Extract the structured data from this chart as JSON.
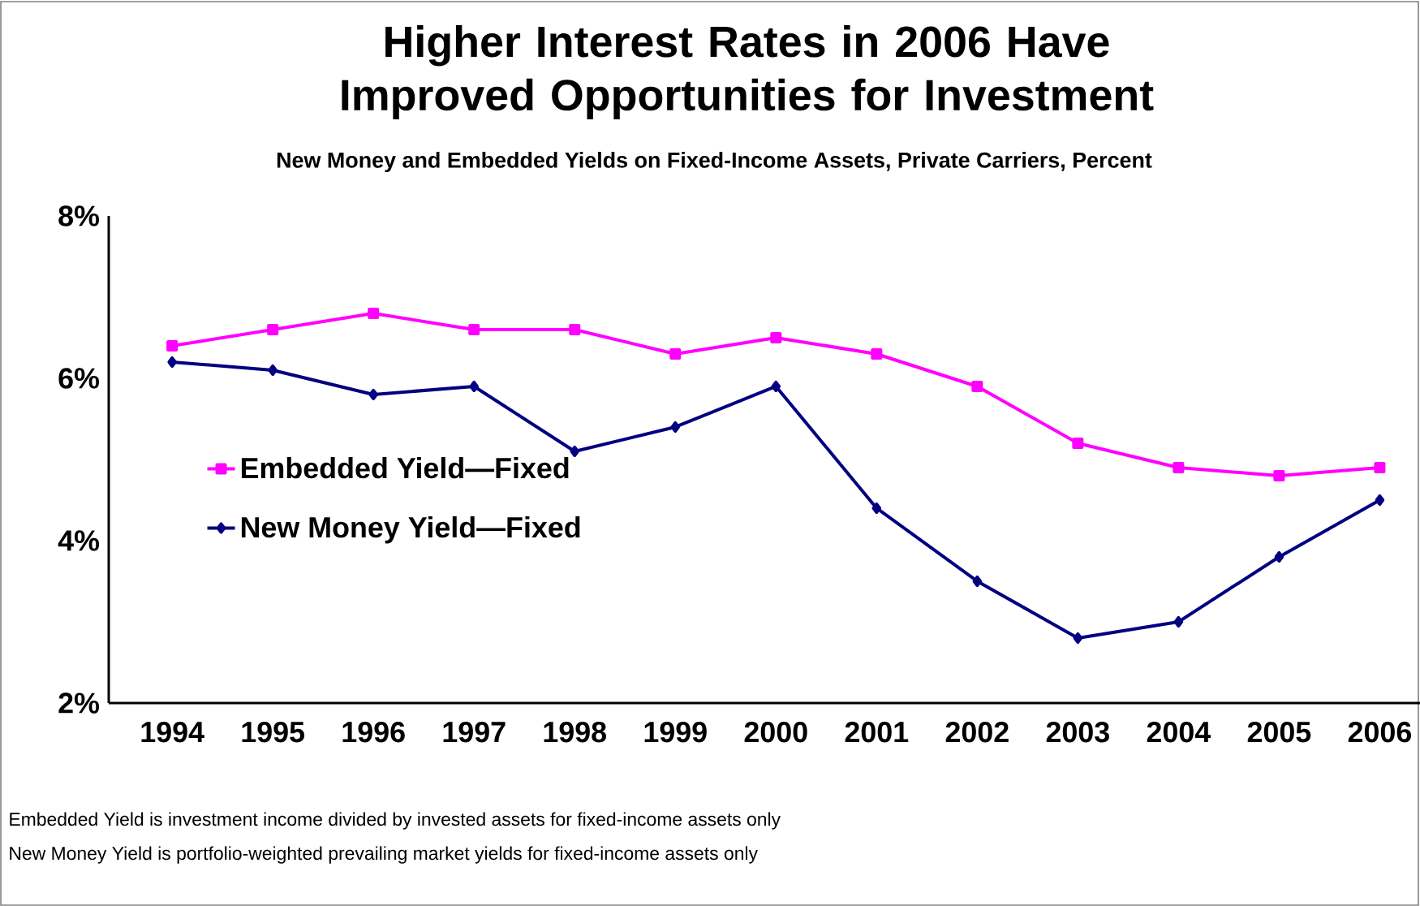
{
  "chart_data": {
    "type": "line",
    "title": "Higher Interest Rates in 2006 Have Improved Opportunities for Investment",
    "subtitle": "New Money and Embedded Yields on Fixed-Income Assets, Private Carriers, Percent",
    "categories": [
      "1994",
      "1995",
      "1996",
      "1997",
      "1998",
      "1999",
      "2000",
      "2001",
      "2002",
      "2003",
      "2004",
      "2005",
      "2006"
    ],
    "series": [
      {
        "name": "Embedded Yield—Fixed",
        "color": "#ff00ff",
        "marker": "square",
        "values": [
          6.4,
          6.6,
          6.8,
          6.6,
          6.6,
          6.3,
          6.5,
          6.3,
          5.9,
          5.2,
          4.9,
          4.8,
          4.9
        ]
      },
      {
        "name": "New Money Yield—Fixed",
        "color": "#000080",
        "marker": "diamond",
        "values": [
          6.2,
          6.1,
          5.8,
          5.9,
          5.1,
          5.4,
          5.9,
          4.4,
          3.5,
          2.8,
          3.0,
          3.8,
          4.5
        ]
      }
    ],
    "ylim": [
      2,
      8
    ],
    "yticks": [
      {
        "value": 2,
        "label": "2%"
      },
      {
        "value": 4,
        "label": "4%"
      },
      {
        "value": 6,
        "label": "6%"
      },
      {
        "value": 8,
        "label": "8%"
      }
    ],
    "legend": "left",
    "line_style": "solid",
    "annotations": [
      "Embedded Yield is investment income divided by invested assets for fixed-income assets only",
      "New Money Yield is portfolio-weighted prevailing market yields for fixed-income assets only"
    ]
  }
}
